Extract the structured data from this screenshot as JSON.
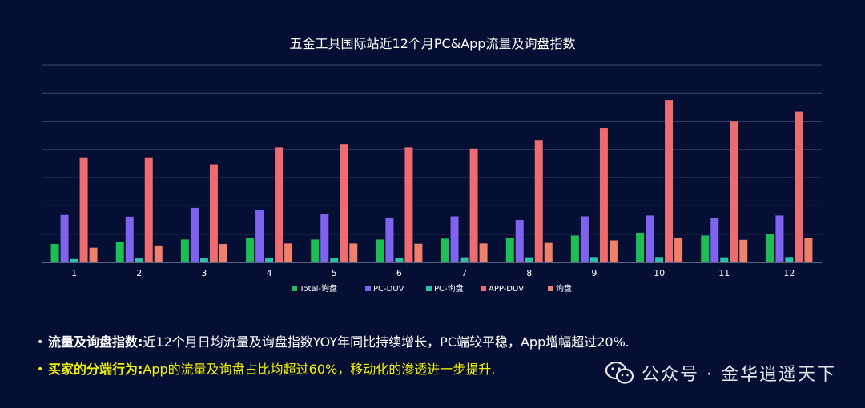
{
  "chart_data": {
    "type": "bar",
    "title": "五金工具国际站近12个月PC&App流量及询盘指数",
    "categories": [
      "1",
      "2",
      "3",
      "4",
      "5",
      "6",
      "7",
      "8",
      "9",
      "10",
      "11",
      "12"
    ],
    "series": [
      {
        "name": "Total-询盘",
        "color": "#1dbf55",
        "values": [
          0.65,
          0.73,
          0.81,
          0.85,
          0.81,
          0.81,
          0.84,
          0.85,
          0.95,
          1.05,
          0.95,
          1.01
        ]
      },
      {
        "name": "PC-DUV",
        "color": "#7f63ee",
        "values": [
          1.68,
          1.62,
          1.93,
          1.87,
          1.7,
          1.58,
          1.63,
          1.5,
          1.63,
          1.66,
          1.58,
          1.66
        ]
      },
      {
        "name": "PC-询盘",
        "color": "#2fc0a5",
        "values": [
          0.12,
          0.14,
          0.16,
          0.17,
          0.16,
          0.16,
          0.18,
          0.18,
          0.19,
          0.19,
          0.18,
          0.19
        ]
      },
      {
        "name": "APP-DUV",
        "color": "#ee6b6f",
        "values": [
          3.72,
          3.72,
          3.47,
          4.07,
          4.19,
          4.07,
          4.03,
          4.33,
          4.76,
          5.75,
          5.01,
          5.34
        ]
      },
      {
        "name": "询盘",
        "color": "#f0806a",
        "values": [
          0.52,
          0.6,
          0.65,
          0.67,
          0.67,
          0.66,
          0.67,
          0.69,
          0.78,
          0.88,
          0.8,
          0.86
        ]
      }
    ],
    "ylim": [
      0,
      7
    ],
    "grid": true,
    "legend": "bottom"
  },
  "bullets": [
    {
      "bold": "流量及询盘指数:",
      "text": " 近12个月日均流量及询盘指数YOY年同比持续增长，PC端较平稳，App增幅超过20%."
    },
    {
      "bold": "买家的分端行为:",
      "text": " App的流量及询盘占比均超过60%，移动化的渗透进一步提升."
    }
  ],
  "watermark": "公众号 · 金华逍遥天下"
}
